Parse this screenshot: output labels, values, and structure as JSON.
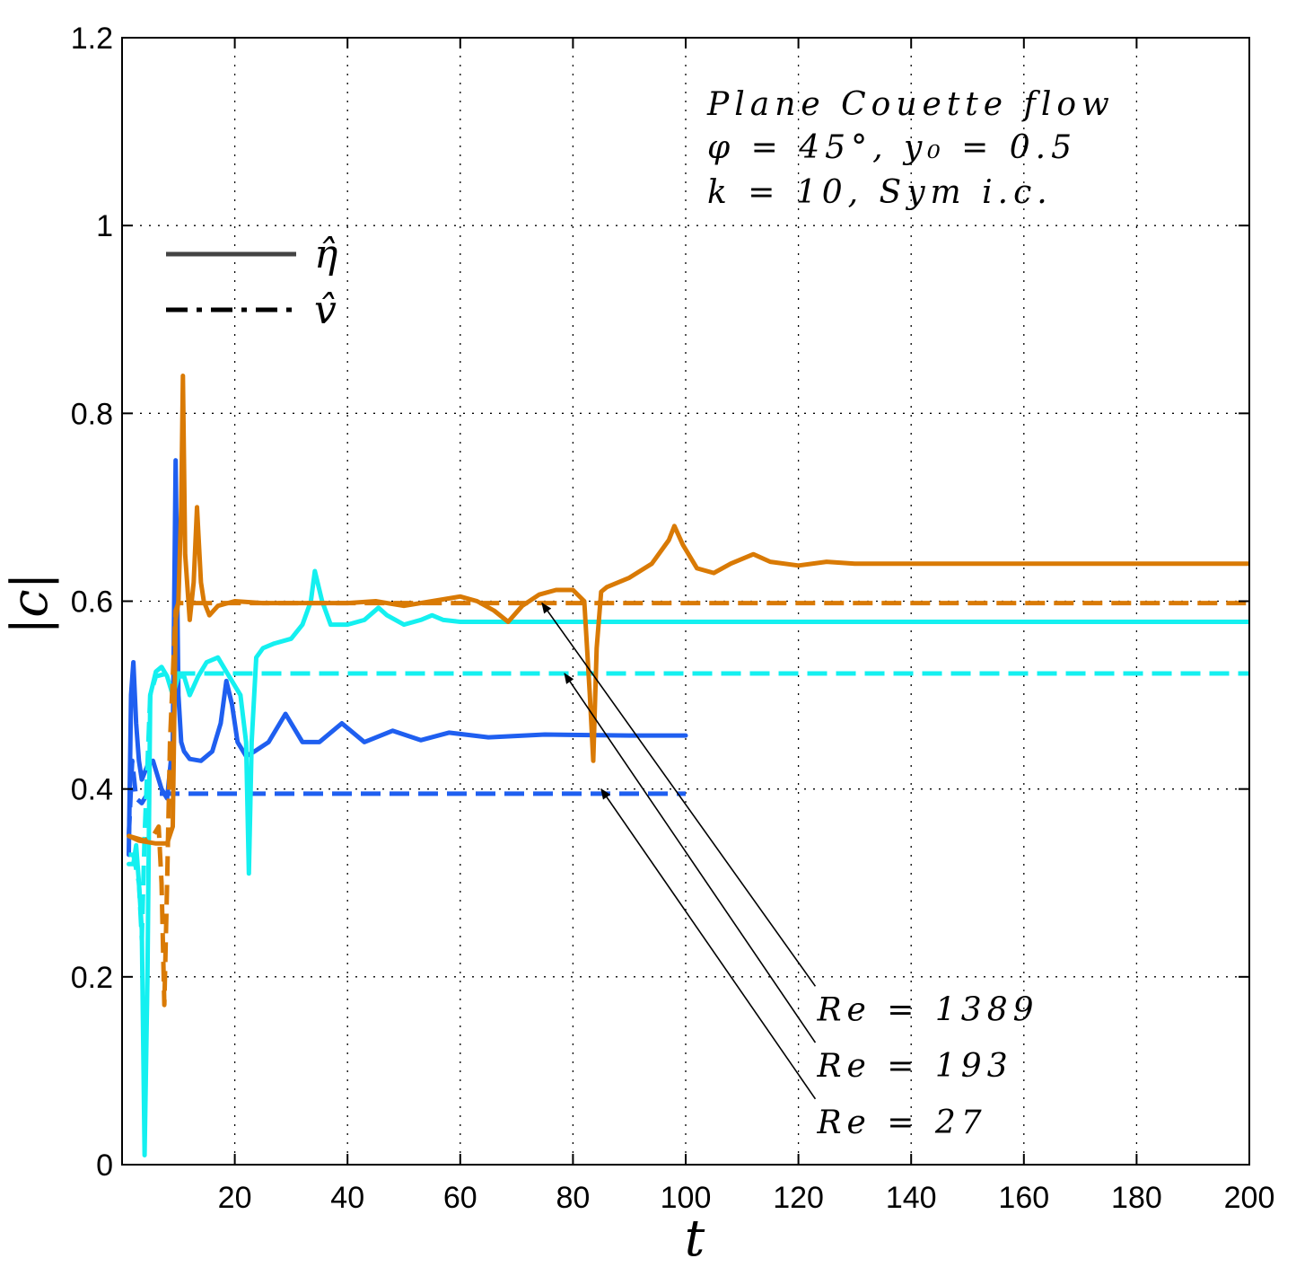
{
  "chart_data": {
    "type": "line",
    "title": "",
    "xlabel": "t",
    "ylabel": "|c|",
    "xlim": [
      0,
      200
    ],
    "ylim": [
      0,
      1.2
    ],
    "xticks": [
      20,
      40,
      60,
      80,
      100,
      120,
      140,
      160,
      180,
      200
    ],
    "yticks": [
      0,
      0.2,
      0.4,
      0.6,
      0.8,
      1,
      1.2
    ],
    "ytick_labels": [
      "0",
      "0.2",
      "0.4",
      "0.6",
      "0.8",
      "1",
      "1.2"
    ],
    "grid": true,
    "annotation_box": [
      "Plane Couette flow",
      "φ = 45°,  y₀ = 0.5",
      "k = 10,  Sym i.c."
    ],
    "legend": {
      "placement": "top-left",
      "entries": [
        {
          "label": "η̂",
          "style": "solid"
        },
        {
          "label": "v̂",
          "style": "dashdot"
        }
      ]
    },
    "arrow_labels": [
      {
        "text": "Re = 1389",
        "from": [
          123,
          0.19
        ],
        "to": [
          74.5,
          0.598
        ]
      },
      {
        "text": "Re = 193",
        "from": [
          123,
          0.13
        ],
        "to": [
          78.5,
          0.523
        ]
      },
      {
        "text": "Re = 27",
        "from": [
          123,
          0.07
        ],
        "to": [
          85,
          0.4
        ]
      }
    ],
    "series": [
      {
        "name": "Re = 27 eta-hat",
        "color": "#1F5FF0",
        "style": "solid",
        "x": [
          1.2,
          1.6,
          2,
          2.5,
          3,
          3.5,
          4.5,
          5.5,
          7,
          8,
          9,
          9.5,
          10,
          10.5,
          11,
          12,
          14,
          16,
          17.5,
          18.5,
          19.5,
          20.5,
          22,
          23.5,
          26,
          29,
          32,
          35,
          39,
          43,
          48,
          53,
          58,
          65,
          75,
          90,
          100
        ],
        "y": [
          0.33,
          0.5,
          0.535,
          0.47,
          0.43,
          0.41,
          0.425,
          0.43,
          0.4,
          0.39,
          0.45,
          0.75,
          0.5,
          0.45,
          0.44,
          0.432,
          0.43,
          0.44,
          0.47,
          0.515,
          0.49,
          0.45,
          0.435,
          0.44,
          0.45,
          0.48,
          0.45,
          0.45,
          0.47,
          0.45,
          0.462,
          0.452,
          0.46,
          0.455,
          0.458,
          0.457,
          0.457
        ]
      },
      {
        "name": "Re = 27 v-hat",
        "color": "#1F5FF0",
        "style": "dashdot",
        "x": [
          1.2,
          1.8,
          2.5,
          3.5,
          4.5,
          6,
          8,
          10,
          15,
          30,
          60,
          100
        ],
        "y": [
          0.35,
          0.43,
          0.39,
          0.385,
          0.395,
          0.395,
          0.395,
          0.395,
          0.395,
          0.395,
          0.395,
          0.395
        ]
      },
      {
        "name": "Re = 193 eta-hat",
        "color": "#14F0F0",
        "style": "solid",
        "x": [
          1.2,
          2,
          2.5,
          3,
          3.5,
          4,
          4.5,
          5,
          6,
          7,
          8,
          9,
          10,
          11,
          12,
          13.5,
          15,
          17,
          19,
          21,
          22,
          22.5,
          23,
          23.8,
          25,
          27,
          30,
          32,
          33.5,
          34.2,
          35.5,
          37,
          40,
          43,
          45.5,
          47,
          50,
          53,
          55,
          57,
          60,
          65,
          70,
          80,
          100,
          150,
          200
        ],
        "y": [
          0.32,
          0.32,
          0.34,
          0.3,
          0.25,
          0.01,
          0.2,
          0.5,
          0.525,
          0.53,
          0.52,
          0.5,
          0.52,
          0.52,
          0.5,
          0.52,
          0.535,
          0.54,
          0.52,
          0.5,
          0.45,
          0.31,
          0.45,
          0.54,
          0.55,
          0.555,
          0.56,
          0.575,
          0.6,
          0.632,
          0.6,
          0.575,
          0.575,
          0.58,
          0.593,
          0.585,
          0.575,
          0.58,
          0.585,
          0.58,
          0.578,
          0.578,
          0.578,
          0.578,
          0.578,
          0.578,
          0.578
        ]
      },
      {
        "name": "Re = 193 v-hat",
        "color": "#14F0F0",
        "style": "dashdot",
        "x": [
          1.2,
          2,
          3,
          3.5,
          4,
          5,
          6,
          8,
          10,
          20,
          50,
          100,
          150,
          200
        ],
        "y": [
          0.33,
          0.33,
          0.3,
          0.24,
          0.35,
          0.5,
          0.52,
          0.523,
          0.523,
          0.523,
          0.523,
          0.523,
          0.523,
          0.523
        ]
      },
      {
        "name": "Re = 1389 eta-hat",
        "color": "#D97A05",
        "style": "solid",
        "x": [
          1.2,
          3,
          6,
          8,
          9,
          9.5,
          10,
          10.5,
          10.8,
          11.2,
          12,
          12.7,
          13.3,
          14,
          14.5,
          15.5,
          17,
          20,
          25,
          30,
          35,
          40,
          45,
          50,
          55,
          60,
          63,
          66,
          68.5,
          71,
          74,
          77,
          80,
          82,
          83,
          83.6,
          84.2,
          85,
          86,
          90,
          94,
          97,
          98,
          99.5,
          102,
          105,
          108,
          112,
          115,
          120,
          125,
          130,
          140,
          150,
          170,
          200
        ],
        "y": [
          0.35,
          0.345,
          0.342,
          0.342,
          0.36,
          0.58,
          0.6,
          0.7,
          0.84,
          0.65,
          0.58,
          0.62,
          0.7,
          0.62,
          0.6,
          0.585,
          0.595,
          0.6,
          0.598,
          0.598,
          0.598,
          0.598,
          0.6,
          0.595,
          0.6,
          0.605,
          0.6,
          0.59,
          0.578,
          0.595,
          0.607,
          0.612,
          0.612,
          0.6,
          0.5,
          0.43,
          0.55,
          0.61,
          0.615,
          0.625,
          0.64,
          0.665,
          0.68,
          0.66,
          0.635,
          0.63,
          0.64,
          0.65,
          0.642,
          0.638,
          0.642,
          0.64,
          0.64,
          0.64,
          0.64,
          0.64
        ]
      },
      {
        "name": "Re = 1389 v-hat",
        "color": "#D97A05",
        "style": "dashdot",
        "x": [
          1.2,
          4,
          5.5,
          6.5,
          7,
          7.5,
          8,
          8.5,
          9,
          9.5,
          10,
          12,
          20,
          50,
          100,
          150,
          200
        ],
        "y": [
          0.35,
          0.345,
          0.35,
          0.36,
          0.3,
          0.17,
          0.3,
          0.45,
          0.52,
          0.59,
          0.598,
          0.598,
          0.598,
          0.598,
          0.598,
          0.598,
          0.598
        ]
      }
    ]
  }
}
